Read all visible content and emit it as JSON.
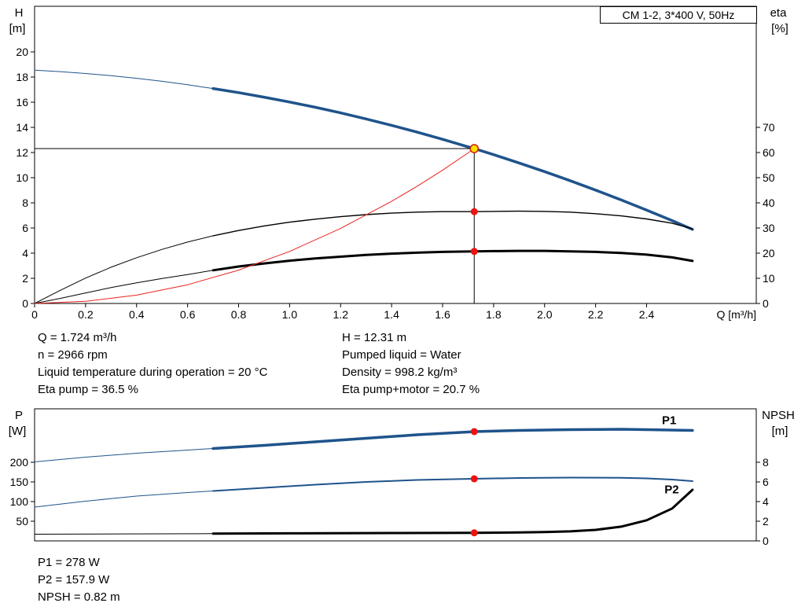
{
  "title_box": "CM 1-2, 3*400 V, 50Hz",
  "colors": {
    "blue": "#1f538b",
    "black": "#000000",
    "red": "#e8231e",
    "dot_red": "#ee1111",
    "duty_fill": "#ffdf00",
    "duty_ring": "#cc2200"
  },
  "duty_info": {
    "left": [
      "Q = 1.724 m³/h",
      "n = 2966 rpm",
      "Liquid temperature during operation = 20 °C",
      "Eta pump = 36.5 %"
    ],
    "right": [
      "H = 12.31 m",
      "Pumped liquid = Water",
      "Density = 998.2 kg/m³",
      "Eta pump+motor = 20.7 %"
    ]
  },
  "power_info": [
    "P1 = 278 W",
    "P2 = 157.9 W",
    "NPSH = 0.82 m"
  ],
  "chart_data": [
    {
      "type": "line",
      "name": "qh-eta-chart",
      "x": {
        "label": "Q [m³/h]",
        "min": 0,
        "max": 2.83,
        "ticks": [
          0,
          0.2,
          0.4,
          0.6,
          0.8,
          1.0,
          1.2,
          1.4,
          1.6,
          1.8,
          2.0,
          2.2,
          2.4
        ],
        "tick_labels": [
          "0",
          "0.2",
          "0.4",
          "0.6",
          "0.8",
          "1.0",
          "1.2",
          "1.4",
          "1.6",
          "1.8",
          "2.0",
          "2.2",
          "2.4"
        ]
      },
      "y_left": {
        "title": "H",
        "unit": "[m]",
        "min": 0,
        "max": 23.625,
        "ticks": [
          0,
          2,
          4,
          6,
          8,
          10,
          12,
          14,
          16,
          18,
          20
        ]
      },
      "y_right": {
        "title": "eta",
        "unit": "[%]",
        "min": 0,
        "max": 118.125,
        "ticks": [
          0,
          10,
          20,
          30,
          40,
          50,
          60,
          70
        ]
      },
      "series": [
        {
          "name": "hq-curve-lead",
          "axis": "left",
          "color": "blue",
          "width": 1,
          "pts": [
            [
              0,
              18.55
            ],
            [
              0.1,
              18.43
            ],
            [
              0.2,
              18.28
            ],
            [
              0.3,
              18.11
            ],
            [
              0.4,
              17.9
            ],
            [
              0.5,
              17.66
            ],
            [
              0.6,
              17.39
            ],
            [
              0.7,
              17.09
            ]
          ]
        },
        {
          "name": "hq-curve",
          "axis": "left",
          "color": "blue",
          "width": 3.5,
          "pts": [
            [
              0.7,
              17.09
            ],
            [
              0.8,
              16.76
            ],
            [
              0.9,
              16.4
            ],
            [
              1.0,
              16.01
            ],
            [
              1.1,
              15.6
            ],
            [
              1.2,
              15.15
            ],
            [
              1.3,
              14.67
            ],
            [
              1.4,
              14.16
            ],
            [
              1.5,
              13.62
            ],
            [
              1.6,
              13.05
            ],
            [
              1.7,
              12.45
            ],
            [
              1.724,
              12.31
            ],
            [
              1.8,
              11.83
            ],
            [
              1.9,
              11.17
            ],
            [
              2.0,
              10.48
            ],
            [
              2.1,
              9.76
            ],
            [
              2.2,
              9.01
            ],
            [
              2.3,
              8.23
            ],
            [
              2.4,
              7.42
            ],
            [
              2.5,
              6.59
            ],
            [
              2.58,
              5.89
            ]
          ]
        },
        {
          "name": "eta-pump-lead",
          "axis": "right",
          "color": "black",
          "width": 1,
          "pts": [
            [
              0,
              0
            ],
            [
              0.1,
              5.2
            ],
            [
              0.2,
              10.1
            ],
            [
              0.3,
              14.4
            ],
            [
              0.4,
              18.2
            ],
            [
              0.5,
              21.5
            ],
            [
              0.6,
              24.4
            ],
            [
              0.7,
              26.9
            ]
          ]
        },
        {
          "name": "eta-pump",
          "axis": "right",
          "color": "black",
          "width": 1.4,
          "pts": [
            [
              0.7,
              26.9
            ],
            [
              0.8,
              29.0
            ],
            [
              0.9,
              30.8
            ],
            [
              1.0,
              32.3
            ],
            [
              1.1,
              33.5
            ],
            [
              1.2,
              34.5
            ],
            [
              1.3,
              35.3
            ],
            [
              1.4,
              35.9
            ],
            [
              1.5,
              36.3
            ],
            [
              1.6,
              36.5
            ],
            [
              1.724,
              36.5
            ],
            [
              1.8,
              36.6
            ],
            [
              1.9,
              36.7
            ],
            [
              2.0,
              36.6
            ],
            [
              2.1,
              36.3
            ],
            [
              2.2,
              35.7
            ],
            [
              2.3,
              34.8
            ],
            [
              2.4,
              33.6
            ],
            [
              2.5,
              31.9
            ],
            [
              2.58,
              29.7
            ]
          ]
        },
        {
          "name": "eta-pump-motor-lead",
          "axis": "right",
          "color": "black",
          "width": 1,
          "pts": [
            [
              0,
              0
            ],
            [
              0.1,
              2.0
            ],
            [
              0.2,
              4.2
            ],
            [
              0.3,
              6.3
            ],
            [
              0.4,
              8.2
            ],
            [
              0.5,
              9.9
            ],
            [
              0.6,
              11.5
            ],
            [
              0.7,
              13.2
            ]
          ]
        },
        {
          "name": "eta-pump-motor",
          "axis": "right",
          "color": "black",
          "width": 3,
          "pts": [
            [
              0.7,
              13.2
            ],
            [
              0.8,
              14.7
            ],
            [
              0.9,
              15.9
            ],
            [
              1.0,
              17.0
            ],
            [
              1.1,
              17.9
            ],
            [
              1.2,
              18.6
            ],
            [
              1.3,
              19.3
            ],
            [
              1.4,
              19.8
            ],
            [
              1.5,
              20.2
            ],
            [
              1.6,
              20.5
            ],
            [
              1.724,
              20.7
            ],
            [
              1.8,
              20.8
            ],
            [
              1.9,
              20.9
            ],
            [
              2.0,
              20.9
            ],
            [
              2.1,
              20.7
            ],
            [
              2.2,
              20.5
            ],
            [
              2.3,
              20.1
            ],
            [
              2.4,
              19.4
            ],
            [
              2.5,
              18.3
            ],
            [
              2.58,
              16.9
            ]
          ]
        },
        {
          "name": "system-curve",
          "axis": "left",
          "color": "red",
          "width": 1,
          "pts": [
            [
              0,
              0
            ],
            [
              0.2,
              0.17
            ],
            [
              0.4,
              0.66
            ],
            [
              0.6,
              1.49
            ],
            [
              0.8,
              2.65
            ],
            [
              1.0,
              4.14
            ],
            [
              1.2,
              5.96
            ],
            [
              1.4,
              8.12
            ],
            [
              1.5,
              9.32
            ],
            [
              1.6,
              10.6
            ],
            [
              1.7,
              11.97
            ],
            [
              1.724,
              12.31
            ]
          ]
        }
      ],
      "crosshair": {
        "q": 1.724,
        "axis": "left",
        "value": 12.31
      },
      "labels": [],
      "markers": [
        {
          "type": "open-red",
          "axis": "left",
          "q": 1.724,
          "v": 12.31
        },
        {
          "type": "duty",
          "axis": "left",
          "q": 1.724,
          "v": 12.31
        },
        {
          "type": "red-dot",
          "axis": "right",
          "q": 1.724,
          "v": 36.5
        },
        {
          "type": "red-dot",
          "axis": "right",
          "q": 1.724,
          "v": 20.7
        }
      ],
      "duty_point": {
        "q": 1.724,
        "h": 12.31,
        "eta_pump": 36.5,
        "eta_pump_motor": 20.7,
        "n_rpm": 2966
      }
    },
    {
      "type": "line",
      "name": "power-npsh-chart",
      "x": {
        "label": "",
        "min": 0,
        "max": 2.83,
        "ticks": [],
        "tick_labels": []
      },
      "y_left": {
        "title": "P",
        "unit": "[W]",
        "min": 0,
        "max": 336,
        "ticks": [
          50,
          100,
          150,
          200
        ]
      },
      "y_right": {
        "title": "NPSH",
        "unit": "[m]",
        "min": 0,
        "max": 13.44,
        "ticks": [
          0,
          2,
          4,
          6,
          8
        ]
      },
      "series": [
        {
          "name": "p1-lead",
          "axis": "left",
          "color": "blue",
          "width": 1,
          "pts": [
            [
              0,
              201
            ],
            [
              0.2,
              213
            ],
            [
              0.4,
              223
            ],
            [
              0.6,
              231
            ],
            [
              0.7,
              235
            ]
          ]
        },
        {
          "name": "p1",
          "axis": "left",
          "color": "blue",
          "width": 3.5,
          "pts": [
            [
              0.7,
              235
            ],
            [
              0.9,
              243
            ],
            [
              1.1,
              252
            ],
            [
              1.3,
              261
            ],
            [
              1.5,
              270
            ],
            [
              1.7,
              277
            ],
            [
              1.724,
              278
            ],
            [
              1.9,
              281
            ],
            [
              2.1,
              283
            ],
            [
              2.3,
              284
            ],
            [
              2.4,
              283
            ],
            [
              2.58,
              281
            ]
          ]
        },
        {
          "name": "p2-lead",
          "axis": "left",
          "color": "blue",
          "width": 1,
          "pts": [
            [
              0,
              86
            ],
            [
              0.2,
              101
            ],
            [
              0.4,
              114
            ],
            [
              0.6,
              123
            ],
            [
              0.7,
              127
            ]
          ]
        },
        {
          "name": "p2",
          "axis": "left",
          "color": "blue",
          "width": 2,
          "pts": [
            [
              0.7,
              127
            ],
            [
              0.9,
              135
            ],
            [
              1.1,
              143
            ],
            [
              1.3,
              150
            ],
            [
              1.5,
              155
            ],
            [
              1.7,
              157.7
            ],
            [
              1.724,
              157.9
            ],
            [
              1.9,
              160
            ],
            [
              2.1,
              161
            ],
            [
              2.3,
              160.5
            ],
            [
              2.4,
              159
            ],
            [
              2.5,
              156
            ],
            [
              2.58,
              152
            ]
          ]
        },
        {
          "name": "npsh-lead",
          "axis": "right",
          "color": "black",
          "width": 1,
          "pts": [
            [
              0,
              0.68
            ],
            [
              0.35,
              0.71
            ],
            [
              0.7,
              0.74
            ]
          ]
        },
        {
          "name": "npsh",
          "axis": "right",
          "color": "black",
          "width": 3,
          "pts": [
            [
              0.7,
              0.74
            ],
            [
              1.0,
              0.77
            ],
            [
              1.4,
              0.8
            ],
            [
              1.724,
              0.82
            ],
            [
              1.9,
              0.86
            ],
            [
              2.0,
              0.9
            ],
            [
              2.1,
              0.97
            ],
            [
              2.2,
              1.12
            ],
            [
              2.3,
              1.45
            ],
            [
              2.4,
              2.1
            ],
            [
              2.5,
              3.3
            ],
            [
              2.58,
              5.2
            ]
          ]
        }
      ],
      "crosshair": null,
      "labels": [
        {
          "text": "P1",
          "axis": "left",
          "q": 2.46,
          "v": 297,
          "color": "blue"
        },
        {
          "text": "P2",
          "axis": "left",
          "q": 2.47,
          "v": 121,
          "color": "blue"
        }
      ],
      "markers": [
        {
          "type": "red-dot",
          "axis": "left",
          "q": 1.724,
          "v": 278
        },
        {
          "type": "red-dot",
          "axis": "left",
          "q": 1.724,
          "v": 157.9
        },
        {
          "type": "red-dot",
          "axis": "right",
          "q": 1.724,
          "v": 0.82
        }
      ],
      "duty_point": {
        "q": 1.724,
        "p1_w": 278,
        "p2_w": 157.9,
        "npsh_m": 0.82
      }
    }
  ]
}
